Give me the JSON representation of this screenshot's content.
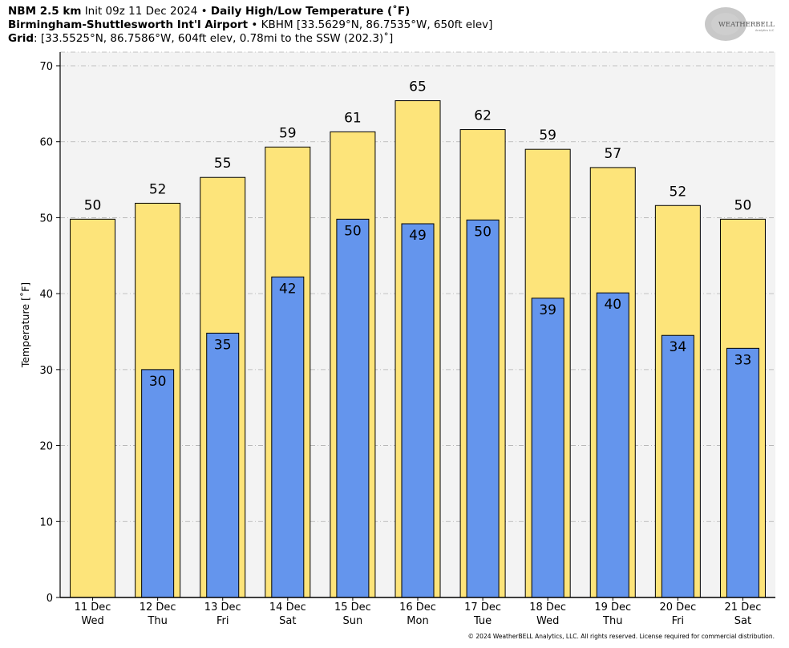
{
  "header": {
    "line1": {
      "model": "NBM 2.5 km",
      "init": "Init 09z 11 Dec 2024",
      "sep": "•",
      "product": "Daily High/Low Temperature (˚F)"
    },
    "line2": {
      "station": "Birmingham-Shuttlesworth Int'l Airport",
      "sep": "•",
      "details": "KBHM [33.5629°N, 86.7535°W, 650ft elev]"
    },
    "line3": {
      "label": "Grid",
      "details": ": [33.5525°N, 86.7586°W, 604ft elev, 0.78mi to the SSW (202.3)˚]"
    }
  },
  "logo": {
    "text_main": "WEATHERBELL",
    "text_sub": "Analytics LLC"
  },
  "footer": "© 2024 WeatherBELL Analytics, LLC. All rights reserved. License required for commercial distribution.",
  "colors": {
    "high": "#fde47a",
    "low": "#6495ed",
    "plot_bg": "#f3f3f3",
    "grid": "#b0b0b0"
  },
  "chart_data": {
    "type": "bar",
    "title": "Daily High/Low Temperature (˚F)",
    "xlabel": "",
    "ylabel": "Temperature [˚F]",
    "ylim": [
      0,
      70
    ],
    "yticks": [
      0,
      10,
      20,
      30,
      40,
      50,
      60,
      70
    ],
    "grid": true,
    "categories": [
      "11 Dec",
      "12 Dec",
      "13 Dec",
      "14 Dec",
      "15 Dec",
      "16 Dec",
      "17 Dec",
      "18 Dec",
      "19 Dec",
      "20 Dec",
      "21 Dec"
    ],
    "weekdays": [
      "Wed",
      "Thu",
      "Fri",
      "Sat",
      "Sun",
      "Mon",
      "Tue",
      "Wed",
      "Thu",
      "Fri",
      "Sat"
    ],
    "series": [
      {
        "values": [
          49.8,
          51.9,
          55.3,
          59.3,
          61.3,
          65.4,
          61.6,
          59.0,
          56.6,
          51.6,
          49.8
        ],
        "labels": [
          "50",
          "52",
          "55",
          "59",
          "61",
          "65",
          "62",
          "59",
          "57",
          "52",
          "50"
        ]
      },
      {
        "values": [
          null,
          30.0,
          34.8,
          42.2,
          49.8,
          49.2,
          49.7,
          39.4,
          40.1,
          34.5,
          32.8
        ],
        "labels": [
          "",
          "30",
          "35",
          "42",
          "50",
          "49",
          "50",
          "39",
          "40",
          "34",
          "33"
        ]
      }
    ]
  }
}
